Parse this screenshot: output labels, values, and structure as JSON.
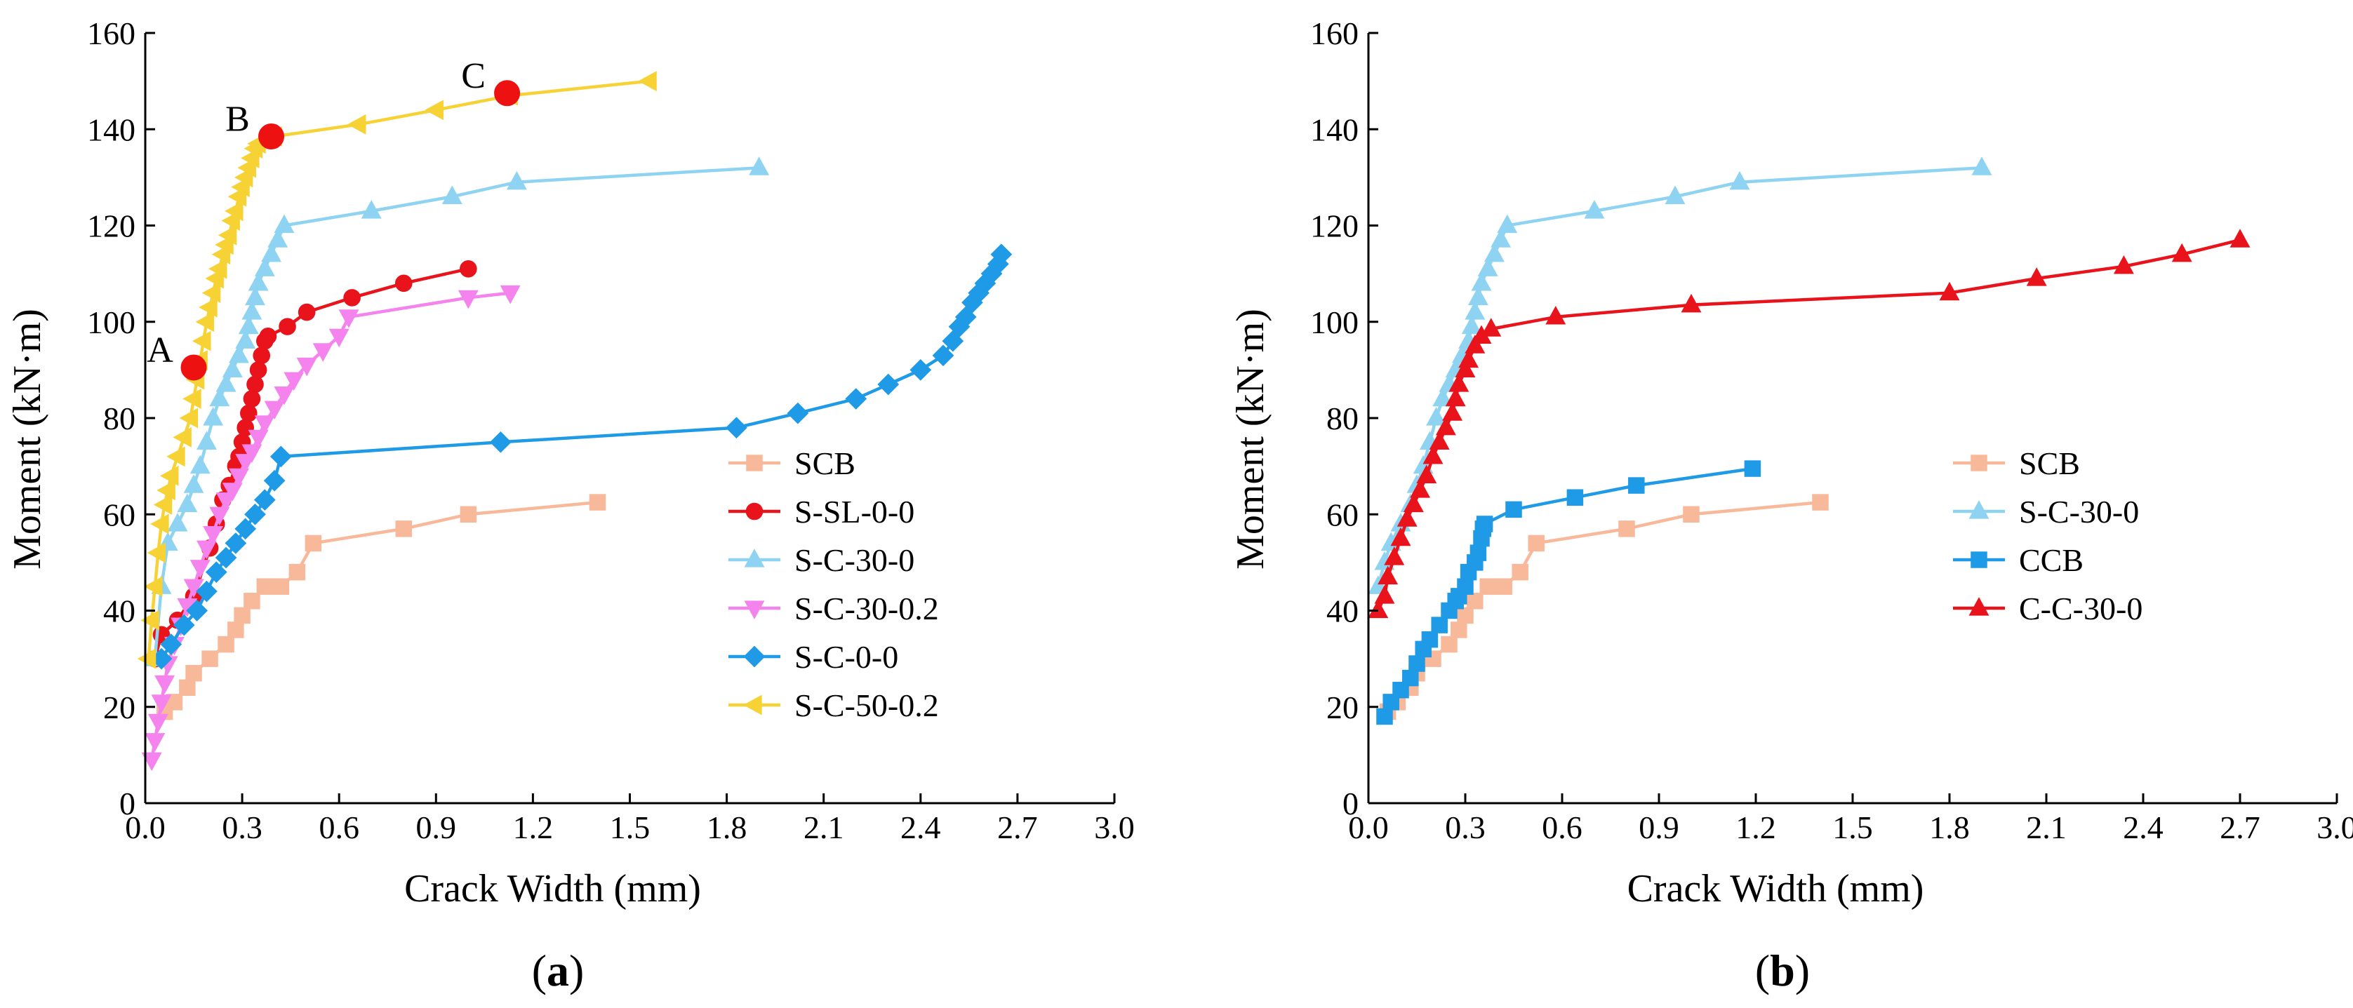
{
  "figure_title": "",
  "series_styles": {
    "SCB": {
      "color": "#F8B99A",
      "marker": "square"
    },
    "S-SL-0-0": {
      "color": "#E8131B",
      "marker": "circle"
    },
    "S-C-30-0": {
      "color": "#8ED3F1",
      "marker": "triangle-up"
    },
    "S-C-30-0.2": {
      "color": "#F583EE",
      "marker": "triangle-down"
    },
    "S-C-0-0": {
      "color": "#1E9AE6",
      "marker": "diamond"
    },
    "S-C-50-0.2": {
      "color": "#F7D235",
      "marker": "triangle-left"
    },
    "CCB": {
      "color": "#1E9AE6",
      "marker": "square"
    },
    "C-C-30-0": {
      "color": "#E8131B",
      "marker": "triangle-up"
    }
  },
  "chart_data": [
    {
      "type": "line",
      "panel_label": "a",
      "xlabel": "Crack Width (mm)",
      "ylabel": "Moment (kN·m)",
      "xlim": [
        0,
        3.0
      ],
      "ylim": [
        0,
        160
      ],
      "xticks": [
        "0.0",
        "0.3",
        "0.6",
        "0.9",
        "1.2",
        "1.5",
        "1.8",
        "2.1",
        "2.4",
        "2.7",
        "3.0"
      ],
      "yticks": [
        "0",
        "20",
        "40",
        "60",
        "80",
        "100",
        "120",
        "140",
        "160"
      ],
      "series": [
        {
          "name": "SCB",
          "x": [
            0.06,
            0.09,
            0.13,
            0.15,
            0.2,
            0.25,
            0.28,
            0.3,
            0.33,
            0.37,
            0.42,
            0.47,
            0.52,
            0.8,
            1.0,
            1.4
          ],
          "y": [
            19,
            21,
            24,
            27,
            30,
            33,
            36,
            39,
            42,
            45,
            45,
            48,
            54,
            57,
            60,
            62.5
          ]
        },
        {
          "name": "S-SL-0-0",
          "x": [
            0.03,
            0.05,
            0.1,
            0.15,
            0.2,
            0.22,
            0.24,
            0.26,
            0.28,
            0.29,
            0.3,
            0.31,
            0.32,
            0.33,
            0.34,
            0.35,
            0.36,
            0.37,
            0.38,
            0.44,
            0.5,
            0.64,
            0.8,
            1.0
          ],
          "y": [
            30,
            35,
            38,
            43,
            53,
            58,
            63,
            66,
            70,
            72,
            75,
            78,
            81,
            84,
            87,
            90,
            93,
            96,
            97,
            99,
            102,
            105,
            108,
            111
          ]
        },
        {
          "name": "S-C-30-0",
          "x": [
            0.03,
            0.05,
            0.07,
            0.1,
            0.13,
            0.15,
            0.17,
            0.19,
            0.21,
            0.23,
            0.25,
            0.27,
            0.29,
            0.31,
            0.32,
            0.33,
            0.34,
            0.35,
            0.37,
            0.39,
            0.41,
            0.43,
            0.7,
            0.95,
            1.15,
            1.9
          ],
          "y": [
            30,
            45,
            54,
            58,
            62,
            66,
            70,
            75,
            80,
            84,
            87,
            90,
            93,
            96,
            99,
            102,
            105,
            108,
            111,
            114,
            117,
            120,
            123,
            126,
            129,
            132
          ]
        },
        {
          "name": "S-C-30-0.2",
          "x": [
            0.02,
            0.03,
            0.04,
            0.05,
            0.06,
            0.07,
            0.09,
            0.11,
            0.13,
            0.15,
            0.17,
            0.19,
            0.21,
            0.23,
            0.25,
            0.27,
            0.29,
            0.31,
            0.33,
            0.35,
            0.37,
            0.4,
            0.43,
            0.46,
            0.5,
            0.55,
            0.6,
            0.63,
            1.0,
            1.13
          ],
          "y": [
            9,
            13,
            17,
            21,
            25,
            29,
            33,
            37,
            41,
            45,
            49,
            53,
            56,
            60,
            63,
            65,
            68,
            71,
            73,
            76,
            79,
            82,
            85,
            88,
            91,
            94,
            97,
            101,
            105,
            106
          ]
        },
        {
          "name": "S-C-0-0",
          "x": [
            0.05,
            0.08,
            0.12,
            0.16,
            0.19,
            0.22,
            0.25,
            0.28,
            0.31,
            0.34,
            0.37,
            0.4,
            0.42,
            1.1,
            1.83,
            2.02,
            2.2,
            2.3,
            2.4,
            2.47,
            2.5,
            2.52,
            2.54,
            2.56,
            2.58,
            2.6,
            2.62,
            2.64,
            2.65
          ],
          "y": [
            30,
            33,
            37,
            40,
            44,
            48,
            51,
            54,
            57,
            60,
            63,
            67,
            72,
            75,
            78,
            81,
            84,
            87,
            90,
            93,
            96,
            99,
            101,
            104,
            106,
            108,
            110,
            112,
            114
          ]
        },
        {
          "name": "S-C-50-0.2",
          "x": [
            0.01,
            0.02,
            0.03,
            0.04,
            0.05,
            0.06,
            0.07,
            0.08,
            0.1,
            0.12,
            0.14,
            0.15,
            0.16,
            0.17,
            0.18,
            0.19,
            0.2,
            0.21,
            0.22,
            0.23,
            0.24,
            0.25,
            0.26,
            0.27,
            0.28,
            0.29,
            0.3,
            0.31,
            0.32,
            0.33,
            0.34,
            0.35,
            0.4,
            0.66,
            0.9,
            1.13,
            1.56
          ],
          "y": [
            30,
            38,
            45,
            52,
            58,
            62,
            65,
            68,
            72,
            76,
            80,
            84,
            88,
            92,
            96,
            100,
            103,
            106,
            109,
            111,
            114,
            116,
            118,
            121,
            123,
            126,
            128,
            130,
            132,
            134,
            136,
            137,
            138.5,
            141,
            144,
            147,
            150
          ]
        }
      ],
      "annotations": [
        {
          "label": "A",
          "x": 0.15,
          "y": 90.5
        },
        {
          "label": "B",
          "x": 0.39,
          "y": 138.5
        },
        {
          "label": "C",
          "x": 1.12,
          "y": 147.5
        }
      ]
    },
    {
      "type": "line",
      "panel_label": "b",
      "xlabel": "Crack Width (mm)",
      "ylabel": "Moment (kN·m)",
      "xlim": [
        0,
        3.0
      ],
      "ylim": [
        0,
        160
      ],
      "xticks": [
        "0.0",
        "0.3",
        "0.6",
        "0.9",
        "1.2",
        "1.5",
        "1.8",
        "2.1",
        "2.4",
        "2.7",
        "3.0"
      ],
      "yticks": [
        "0",
        "20",
        "40",
        "60",
        "80",
        "100",
        "120",
        "140",
        "160"
      ],
      "series": [
        {
          "name": "SCB",
          "x": [
            0.06,
            0.09,
            0.13,
            0.15,
            0.2,
            0.25,
            0.28,
            0.3,
            0.33,
            0.37,
            0.42,
            0.47,
            0.52,
            0.8,
            1.0,
            1.4
          ],
          "y": [
            19,
            21,
            24,
            27,
            30,
            33,
            36,
            39,
            42,
            45,
            45,
            48,
            54,
            57,
            60,
            62.5
          ]
        },
        {
          "name": "S-C-30-0",
          "x": [
            0.03,
            0.05,
            0.07,
            0.1,
            0.13,
            0.15,
            0.17,
            0.19,
            0.21,
            0.23,
            0.25,
            0.27,
            0.29,
            0.31,
            0.32,
            0.33,
            0.34,
            0.35,
            0.37,
            0.39,
            0.41,
            0.43,
            0.7,
            0.95,
            1.15,
            1.9
          ],
          "y": [
            45,
            50,
            54,
            58,
            62,
            66,
            70,
            75,
            80,
            84,
            87,
            90,
            93,
            96,
            99,
            102,
            105,
            108,
            111,
            114,
            117,
            120,
            123,
            126,
            129,
            132
          ]
        },
        {
          "name": "CCB",
          "x": [
            0.05,
            0.07,
            0.1,
            0.13,
            0.15,
            0.17,
            0.19,
            0.22,
            0.25,
            0.27,
            0.28,
            0.3,
            0.31,
            0.33,
            0.34,
            0.35,
            0.355,
            0.36,
            0.45,
            0.64,
            0.83,
            1.19
          ],
          "y": [
            18,
            21,
            23.5,
            26,
            29,
            32,
            34,
            37,
            40,
            42,
            43,
            45,
            48,
            50,
            52,
            55,
            57,
            58,
            61,
            63.5,
            66,
            69.5
          ]
        },
        {
          "name": "C-C-30-0",
          "x": [
            0.03,
            0.05,
            0.06,
            0.08,
            0.1,
            0.12,
            0.14,
            0.16,
            0.18,
            0.2,
            0.22,
            0.24,
            0.26,
            0.27,
            0.28,
            0.3,
            0.31,
            0.33,
            0.35,
            0.38,
            0.58,
            1.0,
            1.8,
            2.07,
            2.34,
            2.52,
            2.7
          ],
          "y": [
            40,
            43,
            47,
            51,
            55,
            59,
            62,
            65,
            68,
            72,
            75,
            78,
            81,
            84,
            87,
            90,
            92,
            95,
            97,
            98.5,
            101,
            103.5,
            106,
            109,
            111.5,
            114,
            117
          ]
        }
      ],
      "annotations": []
    }
  ]
}
